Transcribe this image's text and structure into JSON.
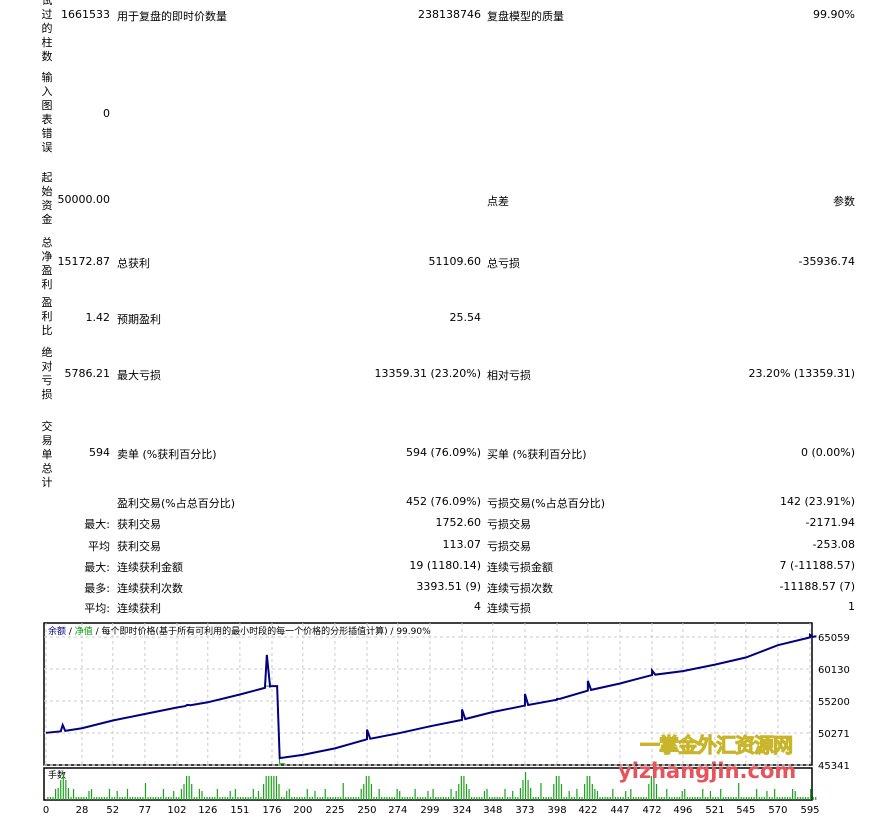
{
  "report": {
    "rows": [
      {
        "label": "试过的柱数",
        "value": "1661533",
        "label2": "用于复盘的即时价数量",
        "value2": "238138746",
        "label3": "复盘模型的质量",
        "value3": "99.90%"
      },
      {
        "label": "输入图表错误",
        "value": "0"
      },
      {
        "label": "起始资金",
        "value": "50000.00",
        "label3": "点差",
        "value3": "参数"
      },
      {
        "label": "总净盈利",
        "value": "15172.87",
        "label2": "总获利",
        "value2": "51109.60",
        "label3": "总亏损",
        "value3": "-35936.74"
      },
      {
        "label": "盈利比",
        "value": "1.42",
        "label2": "预期盈利",
        "value2": "25.54"
      },
      {
        "label": "绝对亏损",
        "value": "5786.21",
        "label2": "最大亏损",
        "value2": "13359.31 (23.20%)",
        "label3": "相对亏损",
        "value3": "23.20% (13359.31)"
      },
      {
        "label": "交易单总计",
        "value": "594",
        "label2": "卖单 (%获利百分比)",
        "value2": "594 (76.09%)",
        "label3": "买单 (%获利百分比)",
        "value3": "0 (0.00%)"
      }
    ],
    "lower_rows": [
      {
        "prefix": "",
        "label2": "盈利交易(%占总百分比)",
        "value2": "452 (76.09%)",
        "label3": "亏损交易(%占总百分比)",
        "value3": "142 (23.91%)"
      },
      {
        "prefix": "最大:",
        "label2": "获利交易",
        "value2": "1752.60",
        "label3": "亏损交易",
        "value3": "-2171.94"
      },
      {
        "prefix": "平均",
        "label2": "获利交易",
        "value2": "113.07",
        "label3": "亏损交易",
        "value3": "-253.08"
      },
      {
        "prefix": "最大:",
        "label2": "连续获利金额",
        "value2": "19 (1180.14)",
        "label3": "连续亏损金额",
        "value3": "7 (-11188.57)"
      },
      {
        "prefix": "最多:",
        "label2": "连续获利次数",
        "value2": "3393.51 (9)",
        "label3": "连续亏损次数",
        "value3": "-11188.57 (7)"
      },
      {
        "prefix": "平均:",
        "label2": "连续获利",
        "value2": "4",
        "label3": "连续亏损",
        "value3": "1"
      }
    ]
  },
  "chart_data": {
    "type": "line",
    "legend": {
      "balance": "余额",
      "sep1": " / ",
      "equity": "净值",
      "rest": " / 每个即时价格(基于所有可利用的最小时段的每一个价格的分形插值计算) / 99.90%"
    },
    "volume_label": "手数",
    "x_ticks": [
      0,
      28,
      52,
      77,
      102,
      126,
      151,
      176,
      200,
      225,
      250,
      274,
      299,
      324,
      348,
      373,
      398,
      422,
      447,
      472,
      496,
      521,
      545,
      570,
      595
    ],
    "y_ticks": [
      65059,
      60130,
      55200,
      50271,
      45341
    ],
    "xlim": [
      0,
      600
    ],
    "ylim": [
      45341,
      66200
    ],
    "grid": true,
    "colors": {
      "balance": "#000080",
      "equity": "#00a000",
      "volume": "#1aa31a"
    },
    "balance": [
      [
        0,
        50300
      ],
      [
        15,
        50600
      ],
      [
        28,
        51000
      ],
      [
        52,
        52200
      ],
      [
        77,
        53200
      ],
      [
        102,
        54200
      ],
      [
        126,
        55000
      ],
      [
        151,
        56200
      ],
      [
        170,
        57200
      ],
      [
        176,
        57500
      ],
      [
        180,
        57500
      ],
      [
        182,
        46400
      ],
      [
        200,
        46900
      ],
      [
        225,
        47900
      ],
      [
        250,
        49300
      ],
      [
        274,
        50200
      ],
      [
        299,
        51300
      ],
      [
        324,
        52300
      ],
      [
        348,
        53500
      ],
      [
        373,
        54500
      ],
      [
        398,
        55400
      ],
      [
        422,
        56800
      ],
      [
        447,
        57900
      ],
      [
        472,
        59200
      ],
      [
        496,
        59800
      ],
      [
        521,
        60800
      ],
      [
        545,
        61900
      ],
      [
        570,
        63800
      ],
      [
        595,
        65000
      ],
      [
        600,
        65172.87
      ]
    ],
    "equity_spikes": [
      [
        13,
        51500
      ],
      [
        110,
        54600
      ],
      [
        172,
        62300
      ],
      [
        250,
        50800
      ],
      [
        324,
        53900
      ],
      [
        373,
        56300
      ],
      [
        398,
        55500
      ],
      [
        422,
        58300
      ],
      [
        472,
        59900
      ],
      [
        595,
        65400
      ]
    ],
    "volume_spikes": [
      13,
      110,
      172,
      176,
      178,
      250,
      324,
      373,
      398,
      422,
      472
    ]
  },
  "watermark": {
    "cn": "一掌金外汇资源网",
    "url": "yizhangjin.com"
  }
}
